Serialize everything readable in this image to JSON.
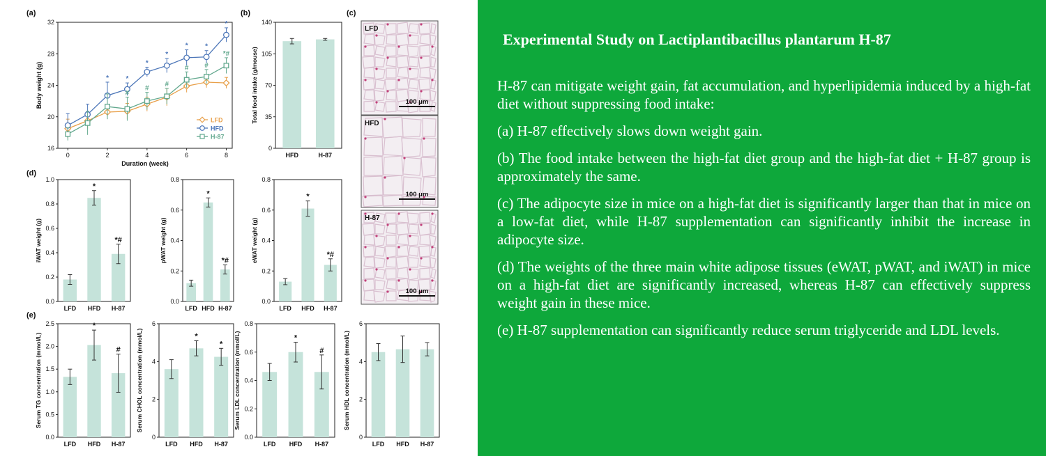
{
  "text_panel": {
    "title": "Experimental Study on Lactiplantibacillus plantarum H-87",
    "paragraphs": [
      "H-87 can mitigate weight gain, fat accumulation, and hyperlipidemia induced by a high-fat diet without suppressing food intake:",
      "(a) H-87 effectively slows down weight gain.",
      "(b) The food intake between the high-fat diet group and the high-fat diet + H-87 group is approximately the same.",
      "(c) The adipocyte size in mice on a high-fat diet is significantly larger than that in mice on a low-fat diet, while H-87 supplementation can significantly inhibit the increase in adipocyte size.",
      "(d) The weights of the three main white adipose tissues (eWAT, pWAT, and iWAT) in mice on a high-fat diet are significantly increased, whereas H-87 can effectively suppress weight gain in these mice.",
      "(e) H-87 supplementation can significantly reduce serum triglyceride and LDL levels."
    ]
  },
  "colors": {
    "background": "#0ea83b",
    "text": "#ffffff",
    "bar": "#c5e3da",
    "LFD": "#e8a04a",
    "HFD": "#4c76b8",
    "H-87": "#62a88e"
  },
  "panel_c": {
    "label": "(c)",
    "images": [
      {
        "label": "LFD",
        "scale": "100 μm"
      },
      {
        "label": "HFD",
        "scale": "100 μm"
      },
      {
        "label": "H-87",
        "scale": "100 μm"
      }
    ]
  },
  "chart_data": [
    {
      "id": "a",
      "panel_label": "(a)",
      "type": "line",
      "xlabel": "Duration (week)",
      "ylabel": "Body weight (g)",
      "xlim": [
        -0.5,
        8.3
      ],
      "ylim": [
        16,
        32
      ],
      "xticks": [
        0,
        2,
        4,
        6,
        8
      ],
      "yticks": [
        16,
        20,
        24,
        28,
        32
      ],
      "legend": "bottom-right",
      "x": [
        0,
        1,
        2,
        3,
        4,
        5,
        6,
        7,
        8
      ],
      "series": [
        {
          "name": "LFD",
          "color": "#e8a04a",
          "marker": "diamond",
          "values": [
            18.5,
            19.5,
            20.6,
            20.7,
            21.6,
            22.5,
            23.9,
            24.4,
            24.3
          ],
          "errors": [
            1.2,
            1.0,
            0.9,
            1.0,
            0.9,
            1.1,
            0.8,
            0.7,
            0.7
          ]
        },
        {
          "name": "HFD",
          "color": "#4c76b8",
          "marker": "circle",
          "values": [
            18.9,
            20.3,
            22.7,
            23.5,
            25.7,
            26.5,
            27.5,
            27.6,
            30.4
          ],
          "errors": [
            1.5,
            1.3,
            1.7,
            0.8,
            0.6,
            0.9,
            1.0,
            0.8,
            0.9
          ],
          "annotations": [
            "",
            "",
            "*",
            "*",
            "*",
            "*",
            "*",
            "*",
            "*"
          ]
        },
        {
          "name": "H-87",
          "color": "#62a88e",
          "marker": "square",
          "values": [
            17.8,
            19.2,
            21.3,
            21.0,
            22.0,
            22.6,
            24.7,
            25.1,
            26.5
          ],
          "errors": [
            0.8,
            1.5,
            1.6,
            1.5,
            1.1,
            1.0,
            1.0,
            0.9,
            1.0
          ],
          "annotations": [
            "",
            "",
            "",
            "#",
            "#",
            "#",
            "#",
            "#",
            "*#"
          ]
        }
      ]
    },
    {
      "id": "b",
      "panel_label": "(b)",
      "type": "bar",
      "categories": [
        "HFD",
        "H-87"
      ],
      "values": [
        119,
        121
      ],
      "errors": [
        3,
        1
      ],
      "ylabel": "Total food intake (g/mouse)",
      "ylim": [
        0,
        140
      ],
      "yticks": [
        0,
        35,
        70,
        105,
        140
      ]
    },
    {
      "id": "d1",
      "panel_label": "(d)",
      "type": "bar",
      "categories": [
        "LFD",
        "HFD",
        "H-87"
      ],
      "values": [
        0.18,
        0.85,
        0.39
      ],
      "errors": [
        0.04,
        0.06,
        0.08
      ],
      "annotations": [
        "",
        "*",
        "*#"
      ],
      "ylabel": "iWAT weight (g)",
      "ylim": [
        0,
        1.0
      ],
      "yticks": [
        0.0,
        0.2,
        0.4,
        0.6,
        0.8,
        1.0
      ]
    },
    {
      "id": "d2",
      "type": "bar",
      "categories": [
        "LFD",
        "HFD",
        "H-87"
      ],
      "values": [
        0.12,
        0.65,
        0.21
      ],
      "errors": [
        0.02,
        0.03,
        0.03
      ],
      "annotations": [
        "",
        "*",
        "*#"
      ],
      "ylabel": "pWAT weight (g)",
      "ylim": [
        0,
        0.8
      ],
      "yticks": [
        0.0,
        0.2,
        0.4,
        0.6,
        0.8
      ]
    },
    {
      "id": "d3",
      "type": "bar",
      "categories": [
        "LFD",
        "HFD",
        "H-87"
      ],
      "values": [
        0.13,
        0.61,
        0.24
      ],
      "errors": [
        0.02,
        0.05,
        0.04
      ],
      "annotations": [
        "",
        "*",
        "*#"
      ],
      "ylabel": "eWAT weight (g)",
      "ylim": [
        0,
        0.8
      ],
      "yticks": [
        0.0,
        0.2,
        0.4,
        0.6,
        0.8
      ]
    },
    {
      "id": "e1",
      "panel_label": "(e)",
      "type": "bar",
      "categories": [
        "LFD",
        "HFD",
        "H-87"
      ],
      "values": [
        1.33,
        2.03,
        1.41
      ],
      "errors": [
        0.17,
        0.33,
        0.42
      ],
      "annotations": [
        "",
        "*",
        "#"
      ],
      "ylabel": "Serum TG concentration (mmol/L)",
      "ylim": [
        0,
        2.5
      ],
      "yticks": [
        0.0,
        0.5,
        1.0,
        1.5,
        2.0,
        2.5
      ]
    },
    {
      "id": "e2",
      "type": "bar",
      "categories": [
        "LFD",
        "HFD",
        "H-87"
      ],
      "values": [
        3.6,
        4.7,
        4.25
      ],
      "errors": [
        0.5,
        0.4,
        0.45
      ],
      "annotations": [
        "",
        "*",
        "*"
      ],
      "ylabel": "Serum CHOL concentration (mmol/L)",
      "ylim": [
        0,
        6
      ],
      "yticks": [
        0,
        2,
        4,
        6
      ]
    },
    {
      "id": "e3",
      "type": "bar",
      "categories": [
        "LFD",
        "HFD",
        "H-87"
      ],
      "values": [
        0.46,
        0.6,
        0.46
      ],
      "errors": [
        0.06,
        0.07,
        0.12
      ],
      "annotations": [
        "",
        "*",
        "#"
      ],
      "ylabel": "Serum LDL concentration (mmol/L)",
      "ylim": [
        0,
        0.8
      ],
      "yticks": [
        0.0,
        0.2,
        0.4,
        0.6,
        0.8
      ]
    },
    {
      "id": "e4",
      "type": "bar",
      "categories": [
        "LFD",
        "HFD",
        "H-87"
      ],
      "values": [
        4.5,
        4.65,
        4.65
      ],
      "errors": [
        0.45,
        0.7,
        0.35
      ],
      "annotations": [
        "",
        "",
        ""
      ],
      "ylabel": "Serum HDL concentration (mmol/L)",
      "ylim": [
        0,
        6
      ],
      "yticks": [
        0,
        2,
        4,
        6
      ]
    }
  ]
}
